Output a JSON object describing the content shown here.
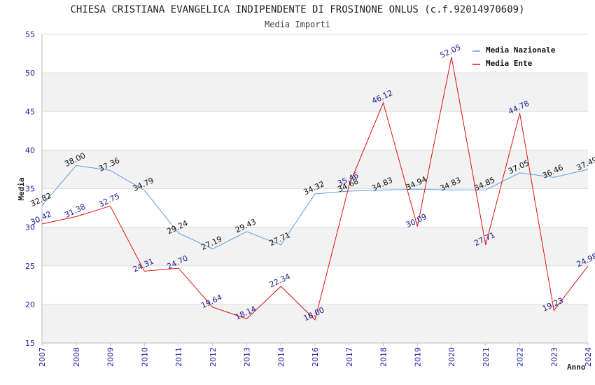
{
  "chart_data": {
    "type": "line",
    "title": "CHIESA CRISTIANA EVANGELICA INDIPENDENTE DI FROSINONE ONLUS (c.f.92014970609)",
    "subtitle": "Media Importi",
    "xlabel": "Anno",
    "ylabel": "Media",
    "ylim": [
      15,
      55
    ],
    "yticks": [
      15,
      20,
      25,
      30,
      35,
      40,
      45,
      50,
      55
    ],
    "grid": true,
    "legend_position": "top-right",
    "categories": [
      "2007",
      "2008",
      "2009",
      "2010",
      "2011",
      "2012",
      "2013",
      "2014",
      "2016",
      "2017",
      "2018",
      "2019",
      "2020",
      "2021",
      "2022",
      "2023",
      "2024"
    ],
    "series": [
      {
        "name": "Media Nazionale",
        "color": "#5aa0e0",
        "label_color": "#111111",
        "values": [
          32.82,
          38.0,
          37.36,
          34.79,
          29.24,
          27.19,
          29.43,
          27.71,
          34.32,
          34.68,
          34.83,
          34.94,
          34.83,
          34.85,
          37.05,
          36.46,
          37.49
        ],
        "labels": [
          "32.82",
          "38.00",
          "37.36",
          "34.79",
          "29.24",
          "27.19",
          "29.43",
          "27.71",
          "34.32",
          "34.68",
          "34.83",
          "34.94",
          "34.83",
          "34.85",
          "37.05",
          "36.46",
          "37.49"
        ]
      },
      {
        "name": "Media Ente",
        "color": "#e01010",
        "label_color": "#1a1a8c",
        "values": [
          30.42,
          31.38,
          32.75,
          24.31,
          24.7,
          19.64,
          18.14,
          22.34,
          18.0,
          35.46,
          46.12,
          30.09,
          52.05,
          27.71,
          44.78,
          19.23,
          24.98
        ],
        "labels": [
          "30.42",
          "31.38",
          "32.75",
          "24.31",
          "24.70",
          "19.64",
          "18.14",
          "22.34",
          "18.00",
          "35.46",
          "46.12",
          "30.09",
          "52.05",
          "27.71",
          "44.78",
          "19.23",
          "24.98"
        ]
      }
    ]
  }
}
